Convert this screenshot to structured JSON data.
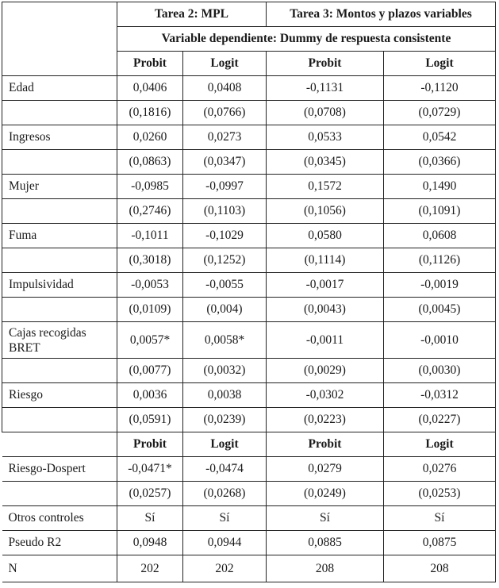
{
  "header": {
    "task2": "Tarea 2: MPL",
    "task3": "Tarea 3: Montos y plazos variables",
    "dependent": "Variable dependiente: Dummy de respuesta consistente",
    "models": [
      "Probit",
      "Logit",
      "Probit",
      "Logit"
    ]
  },
  "rows_top": [
    {
      "label": "Edad",
      "coef": [
        "0,0406",
        "0,0408",
        "-0,1131",
        "-0,1120"
      ],
      "se": [
        "(0,1816)",
        "(0,0766)",
        "(0,0708)",
        "(0,0729)"
      ]
    },
    {
      "label": "Ingresos",
      "coef": [
        "0,0260",
        "0,0273",
        "0,0533",
        "0,0542"
      ],
      "se": [
        "(0,0863)",
        "(0,0347)",
        "(0,0345)",
        "(0,0366)"
      ]
    },
    {
      "label": "Mujer",
      "coef": [
        "-0,0985",
        "-0,0997",
        "0,1572",
        "0,1490"
      ],
      "se": [
        "(0,2746)",
        "(0,1103)",
        "(0,1056)",
        "(0,1091)"
      ]
    },
    {
      "label": "Fuma",
      "coef": [
        "-0,1011",
        "-0,1029",
        "0,0580",
        "0,0608"
      ],
      "se": [
        "(0,3018)",
        "(0,1252)",
        "(0,1114)",
        "(0,1126)"
      ]
    },
    {
      "label": "Impulsividad",
      "coef": [
        "-0,0053",
        "-0,0055",
        "-0,0017",
        "-0,0019"
      ],
      "se": [
        "(0,0109)",
        "(0,004)",
        "(0,0043)",
        "(0,0045)"
      ]
    },
    {
      "label": "Cajas recogidas BRET",
      "coef": [
        "0,0057*",
        "0,0058*",
        "-0,0011",
        "-0,0010"
      ],
      "se": [
        "(0,0077)",
        "(0,0032)",
        "(0,0029)",
        "(0,0030)"
      ]
    },
    {
      "label": "Riesgo",
      "coef": [
        "0,0036",
        "0,0038",
        "-0,0302",
        "-0,0312"
      ],
      "se": [
        "(0,0591)",
        "(0,0239)",
        "(0,0223)",
        "(0,0227)"
      ]
    }
  ],
  "models_lower": [
    "Probit",
    "Logit",
    "Probit",
    "Logit"
  ],
  "dospert": {
    "label": "Riesgo-Dospert",
    "coef": [
      "-0,0471*",
      "-0,0474",
      "0,0279",
      "0,0276"
    ],
    "se": [
      "(0,0257)",
      "(0,0268)",
      "(0,0249)",
      "(0,0253)"
    ]
  },
  "footer": [
    {
      "label": "Otros controles",
      "values": [
        "Sí",
        "Sí",
        "Sí",
        "Sí"
      ]
    },
    {
      "label": "Pseudo R2",
      "values": [
        "0,0948",
        "0,0944",
        "0,0885",
        "0,0875"
      ]
    },
    {
      "label": "N",
      "values": [
        "202",
        "202",
        "208",
        "208"
      ]
    }
  ]
}
